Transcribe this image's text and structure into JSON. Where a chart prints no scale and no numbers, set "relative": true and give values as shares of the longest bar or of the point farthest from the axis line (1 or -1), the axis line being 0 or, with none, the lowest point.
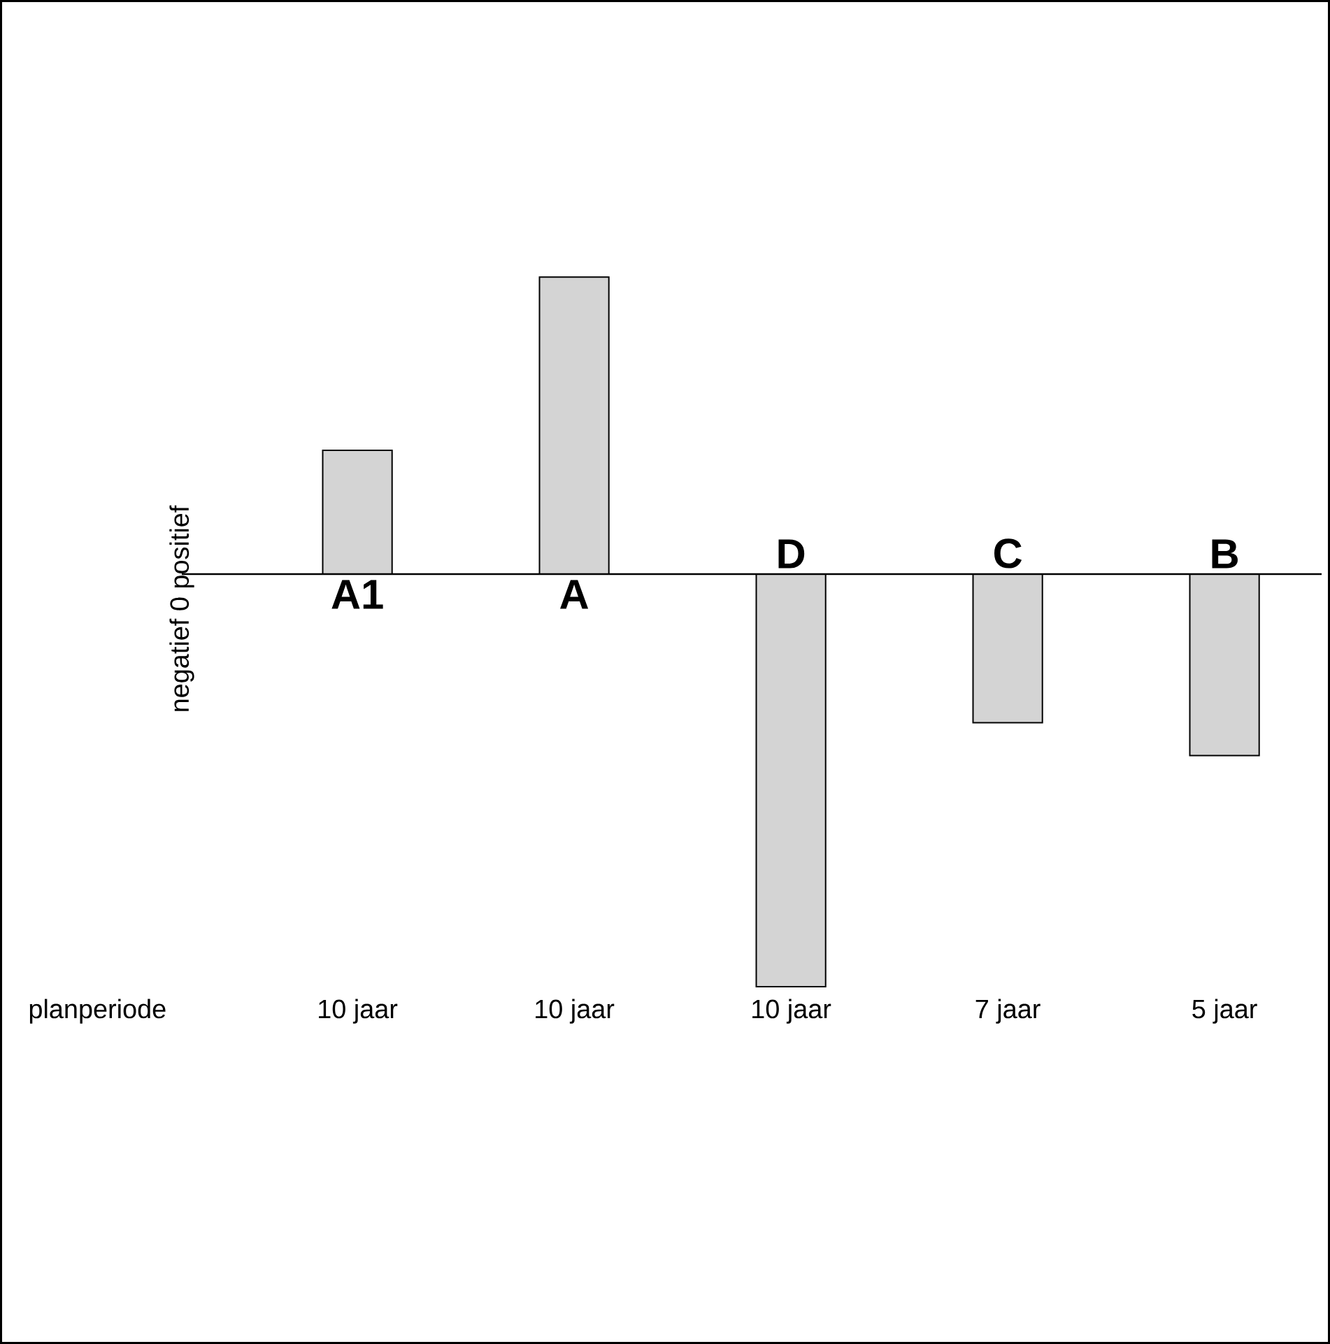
{
  "chart_data": {
    "type": "bar",
    "relative": true,
    "categories": [
      "A1",
      "A",
      "D",
      "C",
      "B"
    ],
    "values": [
      0.3,
      0.72,
      -1,
      -0.36,
      -0.44
    ],
    "color": "#d4d4d4",
    "ylabel": "negatief   0   positief",
    "annotations": [
      "planperiode",
      "10 jaar",
      "10 jaar",
      "10 jaar",
      "7 jaar",
      "5 jaar"
    ]
  }
}
